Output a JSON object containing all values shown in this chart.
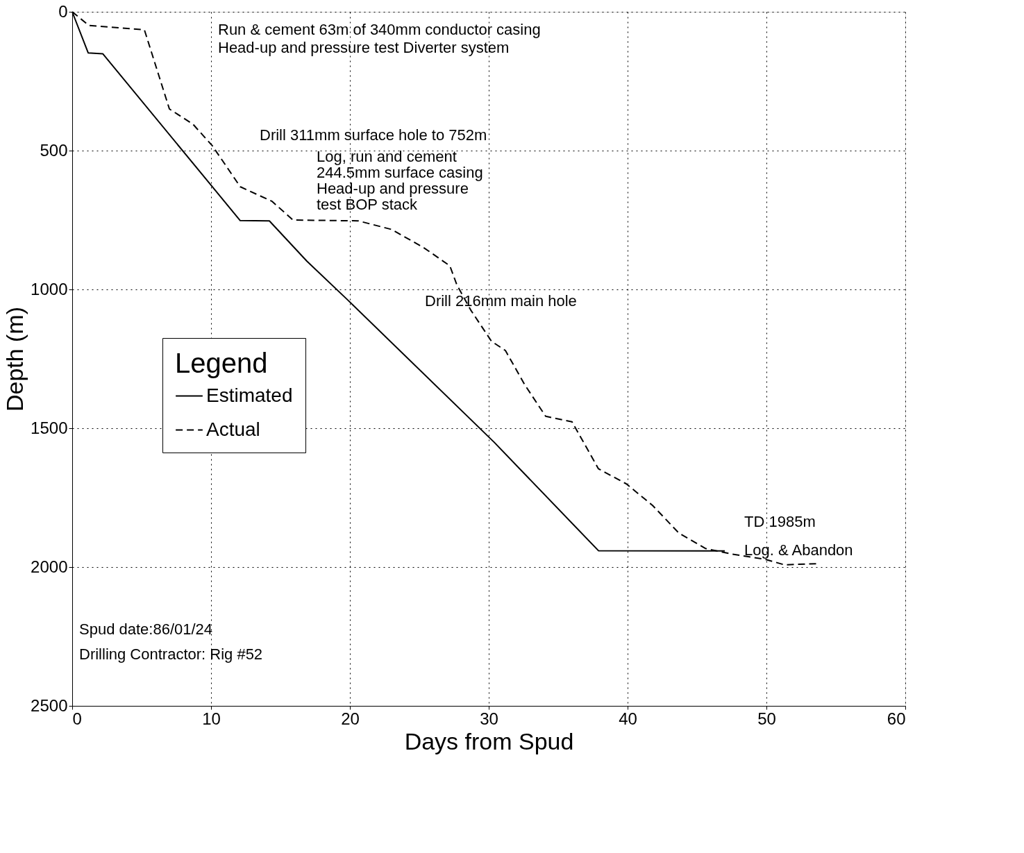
{
  "chart_data": {
    "type": "line",
    "xlabel": "Days from Spud",
    "ylabel": "Depth (m)",
    "legend_title": "Legend",
    "legend": "left",
    "grid": true,
    "marker": "none",
    "xlim": [
      0,
      60
    ],
    "xticks": [
      0,
      10,
      20,
      30,
      40,
      50,
      60
    ],
    "ylim": [
      2500,
      0
    ],
    "yticks": [
      0,
      500,
      {
        "value": 1000,
        "label": "1000"
      },
      {
        "value": 1500,
        "label": "1500"
      },
      {
        "value": 2000,
        "label": "2000"
      },
      {
        "value": 2500,
        "label": "2500"
      }
    ],
    "series": [
      {
        "name": "Estimated",
        "color": "#000000",
        "line_style": "solid",
        "x": [
          0,
          1.15,
          2.2,
          12.1,
          14.2,
          16.9,
          19.8,
          30.4,
          37.9,
          47.0
        ],
        "values": [
          0,
          148,
          151,
          752,
          753,
          898,
          1036,
          1551,
          1941,
          1942
        ]
      },
      {
        "name": "Actual",
        "color": "#000000",
        "line_style": "dashed",
        "x": [
          0,
          1.2,
          5.2,
          7.0,
          8.7,
          10.1,
          12.1,
          14.4,
          15.9,
          20.6,
          23.0,
          25.3,
          27.2,
          27.7,
          28.7,
          30.2,
          31.2,
          32.6,
          34.1,
          36.0,
          37.9,
          39.9,
          41.8,
          43.7,
          45.6,
          47.5,
          49.9,
          51.3,
          53.6
        ],
        "values": [
          0,
          49,
          65,
          350,
          405,
          483,
          630,
          683,
          750,
          753,
          784,
          849,
          915,
          983,
          1074,
          1187,
          1220,
          1344,
          1457,
          1477,
          1646,
          1700,
          1778,
          1878,
          1933,
          1953,
          1972,
          1992,
          1988
        ]
      }
    ],
    "annotations": [
      "Run & cement 63m of 340mm conductor casing",
      "Head-up and pressure test Diverter system",
      "Drill 311mm surface hole to 752m",
      "Log, run and cement",
      "244.5mm surface casing",
      "Head-up and pressure",
      "test BOP stack",
      "Drill 216mm main hole",
      "TD 1985m",
      "Log. & Abandon",
      "Spud date:86/01/24",
      "Drilling Contractor: Rig #52"
    ]
  }
}
